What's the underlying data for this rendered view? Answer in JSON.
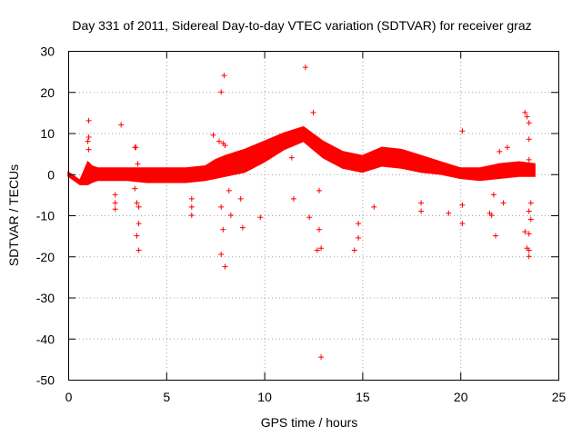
{
  "chart_data": {
    "type": "scatter",
    "title": "Day 331 of 2011, Sidereal Day-to-day VTEC variation (SDTVAR) for receiver graz",
    "xlabel": "GPS time / hours",
    "ylabel": "SDTVAR / TECUs",
    "xlim": [
      0,
      25
    ],
    "ylim": [
      -50,
      30
    ],
    "xticks": [
      0,
      5,
      10,
      15,
      20,
      25
    ],
    "yticks": [
      -50,
      -40,
      -30,
      -20,
      -10,
      0,
      10,
      20,
      30
    ],
    "grid": true,
    "marker": "+",
    "color": "#ff0000",
    "band": {
      "name": "SDTVAR",
      "x": [
        0.0,
        0.3,
        0.6,
        1.0,
        1.2,
        1.5,
        2.0,
        3.0,
        4.0,
        5.0,
        6.0,
        7.0,
        7.5,
        8.0,
        9.0,
        10.0,
        11.0,
        12.0,
        13.0,
        14.0,
        15.0,
        16.0,
        17.0,
        18.0,
        19.0,
        20.0,
        21.0,
        22.0,
        23.0,
        23.8
      ],
      "upper": [
        0.5,
        -0.5,
        -1.5,
        3.0,
        2.0,
        1.5,
        1.5,
        1.5,
        1.5,
        1.5,
        1.5,
        2.0,
        3.5,
        4.5,
        6.0,
        8.0,
        10.0,
        11.5,
        8.0,
        5.5,
        4.5,
        6.5,
        6.0,
        4.5,
        3.0,
        1.5,
        1.5,
        2.5,
        3.0,
        2.5
      ],
      "lower": [
        -0.5,
        -1.5,
        -2.5,
        -2.5,
        -2.0,
        -1.5,
        -1.5,
        -1.5,
        -2.0,
        -2.0,
        -2.0,
        -1.5,
        -1.0,
        -0.5,
        0.5,
        3.0,
        6.0,
        8.0,
        4.0,
        1.5,
        0.5,
        2.0,
        1.5,
        0.5,
        0.0,
        -1.0,
        -1.5,
        -1.0,
        -0.5,
        -0.5
      ]
    },
    "points": [
      [
        1.05,
        13
      ],
      [
        1.05,
        9
      ],
      [
        1.0,
        8
      ],
      [
        1.05,
        6
      ],
      [
        2.7,
        12
      ],
      [
        2.4,
        -5
      ],
      [
        2.4,
        -7
      ],
      [
        2.4,
        -8.5
      ],
      [
        3.4,
        6.5
      ],
      [
        3.45,
        6.5
      ],
      [
        3.4,
        -3.5
      ],
      [
        3.5,
        -7
      ],
      [
        3.6,
        -8
      ],
      [
        3.6,
        -12
      ],
      [
        3.5,
        -15
      ],
      [
        3.6,
        -18.5
      ],
      [
        3.55,
        2.5
      ],
      [
        6.3,
        -8
      ],
      [
        6.3,
        -10
      ],
      [
        6.3,
        -6
      ],
      [
        7.4,
        9.5
      ],
      [
        7.7,
        8
      ],
      [
        7.8,
        20
      ],
      [
        7.95,
        24
      ],
      [
        7.9,
        7.5
      ],
      [
        8.0,
        7
      ],
      [
        7.8,
        -8
      ],
      [
        7.8,
        -19.5
      ],
      [
        8.0,
        -22.5
      ],
      [
        7.9,
        -13.5
      ],
      [
        8.3,
        -10
      ],
      [
        8.2,
        -4
      ],
      [
        8.9,
        -13
      ],
      [
        8.8,
        -6
      ],
      [
        9.8,
        -10.5
      ],
      [
        11.4,
        4
      ],
      [
        11.5,
        -6
      ],
      [
        12.1,
        26
      ],
      [
        12.5,
        15
      ],
      [
        12.3,
        -10.5
      ],
      [
        12.7,
        -18.5
      ],
      [
        12.8,
        -13.5
      ],
      [
        12.9,
        -18
      ],
      [
        12.9,
        -44.5
      ],
      [
        12.8,
        -4
      ],
      [
        14.6,
        -18.5
      ],
      [
        14.8,
        -15.5
      ],
      [
        14.8,
        -12
      ],
      [
        15.6,
        -8
      ],
      [
        18.0,
        -9
      ],
      [
        18.0,
        -7
      ],
      [
        19.4,
        -9.5
      ],
      [
        20.1,
        10.5
      ],
      [
        20.1,
        -7.5
      ],
      [
        20.1,
        -12
      ],
      [
        21.5,
        -9.5
      ],
      [
        21.8,
        -15
      ],
      [
        21.6,
        -10
      ],
      [
        22.0,
        5.5
      ],
      [
        22.4,
        6.5
      ],
      [
        21.7,
        -5
      ],
      [
        22.2,
        -7
      ],
      [
        23.3,
        15
      ],
      [
        23.4,
        14
      ],
      [
        23.5,
        12.5
      ],
      [
        23.5,
        8.5
      ],
      [
        23.5,
        3.5
      ],
      [
        23.5,
        -9
      ],
      [
        23.6,
        -11
      ],
      [
        23.3,
        -14
      ],
      [
        23.4,
        -18
      ],
      [
        23.5,
        -18.5
      ],
      [
        23.5,
        -14.5
      ],
      [
        23.6,
        -7
      ],
      [
        23.5,
        -20
      ]
    ]
  }
}
